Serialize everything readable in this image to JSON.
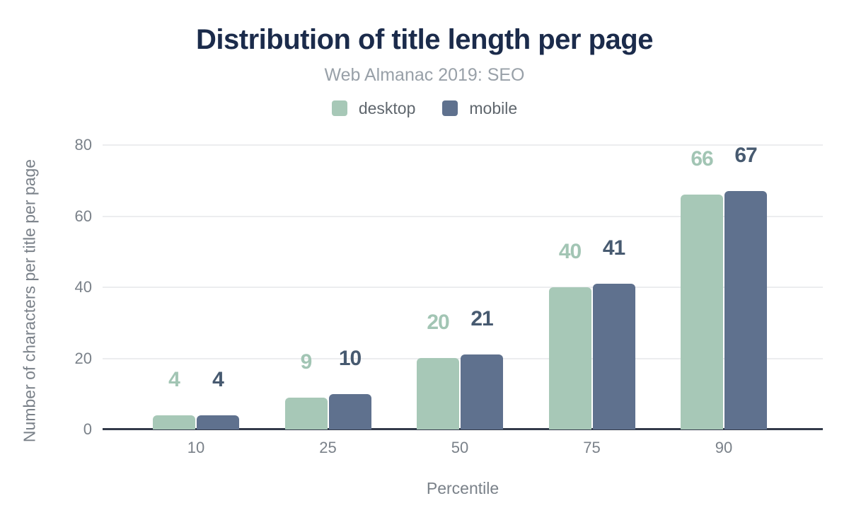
{
  "chart_data": {
    "type": "bar",
    "title": "Distribution of title length per page",
    "subtitle": "Web Almanac 2019: SEO",
    "xlabel": "Percentile",
    "ylabel": "Number of characters per title per page",
    "categories": [
      "10",
      "25",
      "50",
      "75",
      "90"
    ],
    "series": [
      {
        "name": "desktop",
        "values": [
          4,
          9,
          20,
          40,
          66
        ],
        "color": "#a7c8b7",
        "label_color": "#a2c5b4"
      },
      {
        "name": "mobile",
        "values": [
          4,
          10,
          21,
          41,
          67
        ],
        "color": "#5f718e",
        "label_color": "#475a70"
      }
    ],
    "ylim": [
      0,
      80
    ],
    "yticks": [
      0,
      20,
      40,
      60,
      80
    ],
    "grid": true,
    "legend_position": "top"
  },
  "colors": {
    "title": "#1b2b4b",
    "subtitle": "#98a0a8",
    "legend_text": "#5f666d",
    "tick_label": "#7a8189",
    "axis_title": "#7a8189",
    "baseline": "#333a4a",
    "gridline": "#ecedef",
    "background": "#ffffff"
  }
}
